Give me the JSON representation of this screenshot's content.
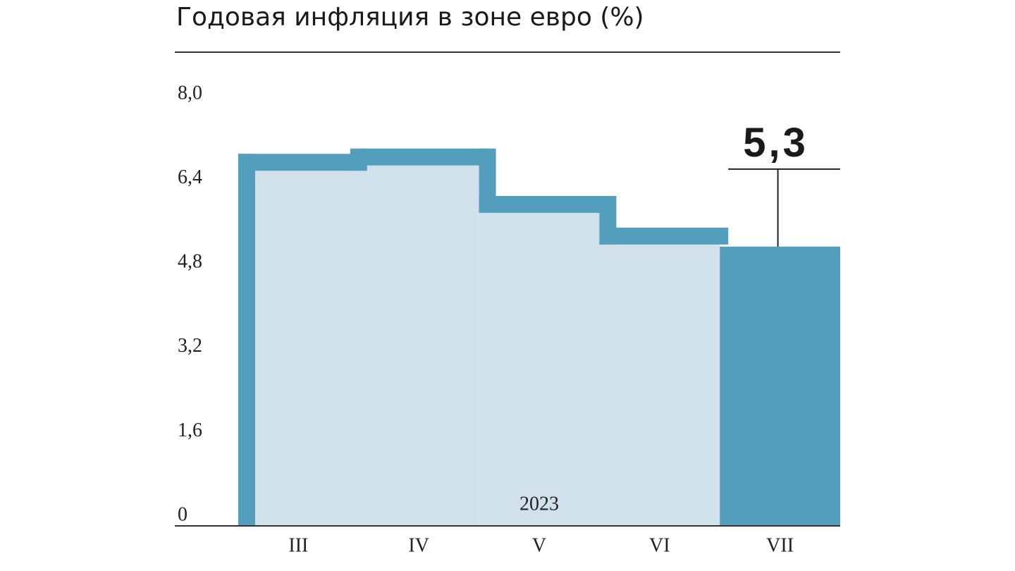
{
  "chart_data": {
    "type": "step-bar",
    "title": "Годовая инфляция в зоне евро (%)",
    "xlabel": "2023",
    "categories": [
      "III",
      "IV",
      "V",
      "VI",
      "VII"
    ],
    "values": [
      6.9,
      7.0,
      6.1,
      5.5,
      5.3
    ],
    "value_labels": [
      null,
      null,
      null,
      null,
      "5,3"
    ],
    "color": "#539dbd",
    "fill_color": "#d0e1ec",
    "ylim": [
      0,
      8
    ],
    "yticks": [
      0,
      {
        "value": 1.6,
        "label": "1,6"
      },
      {
        "value": 3.2,
        "label": "3,2"
      },
      {
        "value": 4.8,
        "label": "4,8"
      },
      {
        "value": 6.4,
        "label": "6,4"
      },
      {
        "value": 8,
        "label": "8,0"
      }
    ],
    "grid": false
  }
}
